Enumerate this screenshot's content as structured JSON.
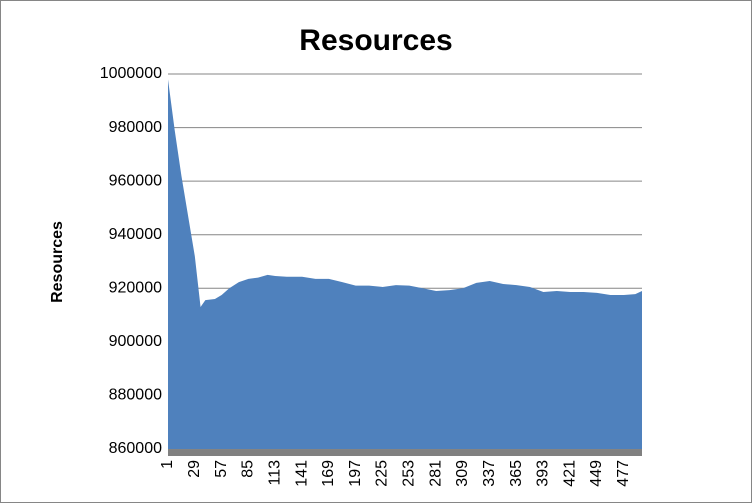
{
  "chart_data": {
    "type": "area",
    "title": "Resources",
    "y_label": "Resources",
    "x": [
      1,
      8,
      15,
      22,
      29,
      35,
      40,
      50,
      57,
      65,
      75,
      85,
      95,
      105,
      113,
      125,
      141,
      155,
      169,
      183,
      197,
      211,
      225,
      239,
      253,
      267,
      281,
      295,
      309,
      323,
      337,
      351,
      365,
      379,
      393,
      407,
      421,
      435,
      449,
      463,
      477,
      489,
      496
    ],
    "values": [
      998000,
      979000,
      962000,
      947000,
      932000,
      913000,
      915600,
      916000,
      917500,
      920000,
      922300,
      923500,
      924000,
      925000,
      924600,
      924300,
      924300,
      923500,
      923500,
      922300,
      921000,
      921000,
      920500,
      921200,
      921000,
      920000,
      919000,
      919300,
      920000,
      922000,
      922700,
      921600,
      921200,
      920500,
      918600,
      919000,
      918600,
      918600,
      918300,
      917500,
      917500,
      917800,
      919000
    ],
    "color": "#4f81bd",
    "xlim": [
      1,
      496
    ],
    "xticks": [
      1,
      29,
      57,
      85,
      113,
      141,
      169,
      197,
      225,
      253,
      281,
      309,
      337,
      365,
      393,
      421,
      449,
      477
    ],
    "ylim": [
      860000,
      1000000
    ],
    "yticks": [
      860000,
      880000,
      900000,
      920000,
      940000,
      960000,
      980000,
      1000000
    ],
    "grid": true
  }
}
